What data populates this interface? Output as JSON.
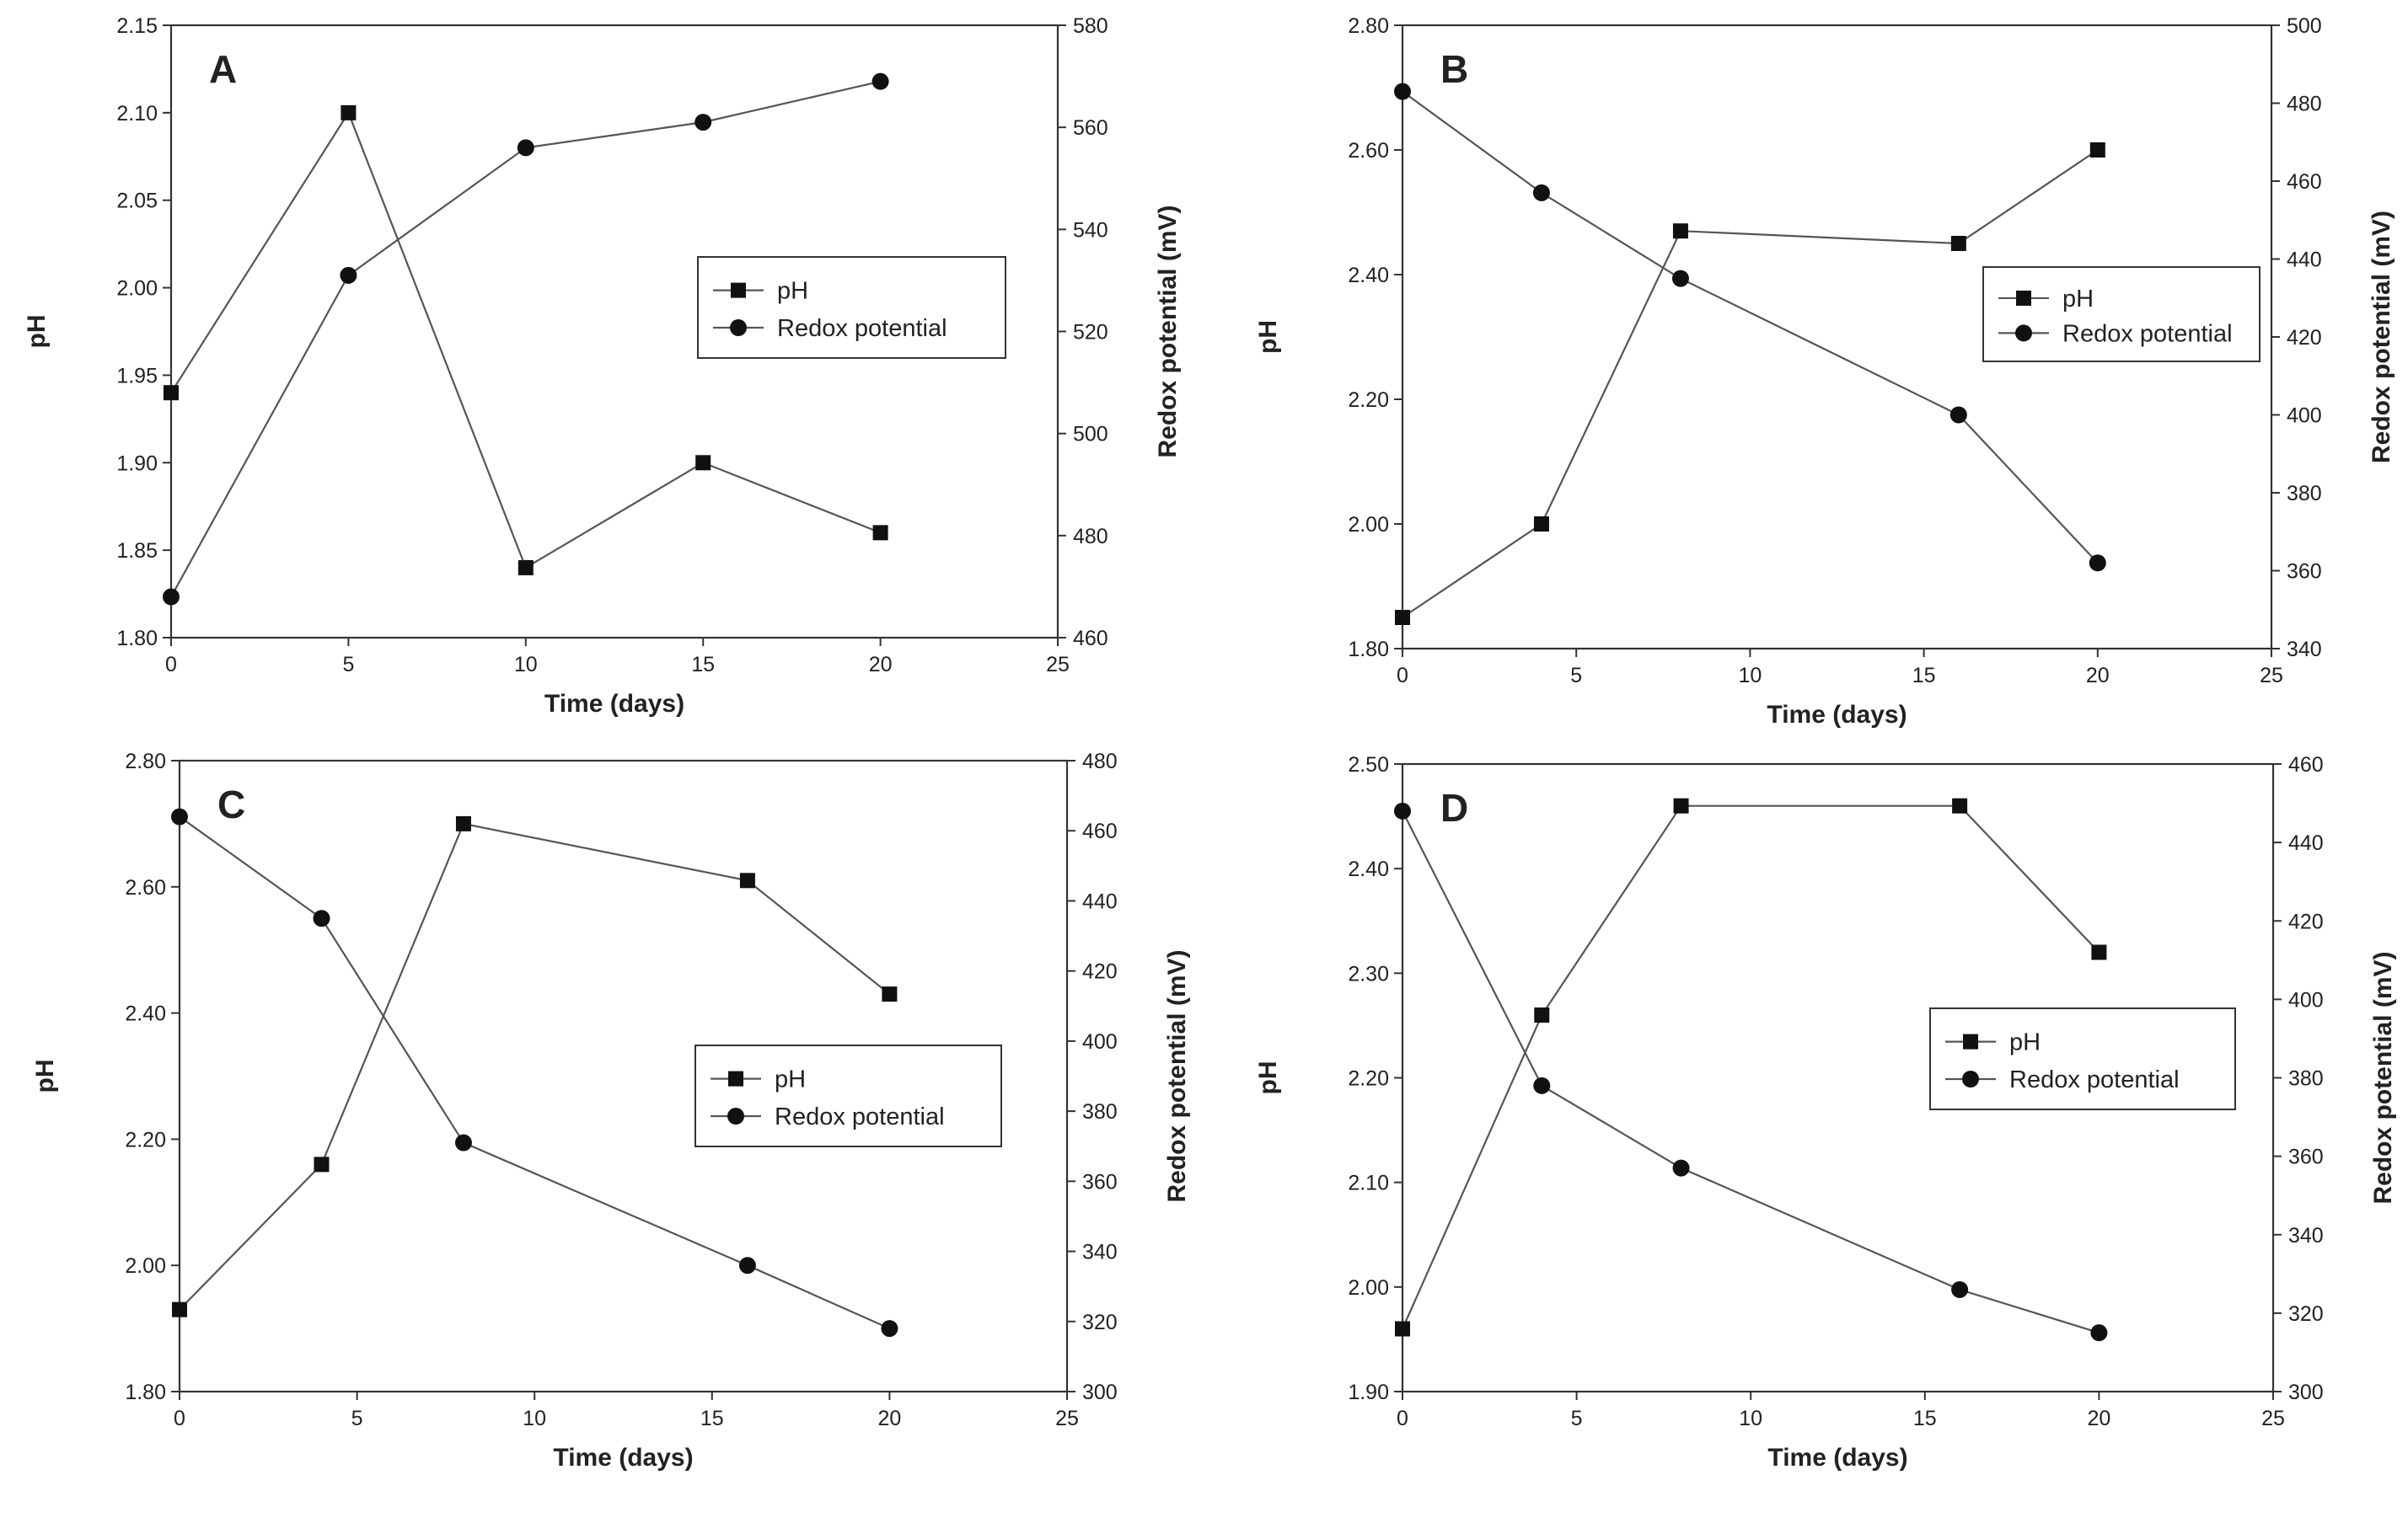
{
  "colors": {
    "line": "#555555",
    "marker": "#111111",
    "axis": "#333333",
    "background": "#ffffff"
  },
  "chart_data": [
    {
      "type": "line",
      "panel": "A",
      "xlabel": "Time (days)",
      "ylabel": "pH",
      "y2label": "Redox potential (mV)",
      "xlim": [
        0,
        25
      ],
      "xticks": [
        "0",
        "5",
        "10",
        "15",
        "20",
        "25"
      ],
      "ylim": [
        1.8,
        2.15
      ],
      "yticks": [
        "1.80",
        "1.85",
        "1.90",
        "1.95",
        "2.00",
        "2.05",
        "2.10",
        "2.15"
      ],
      "y2lim": [
        460,
        580
      ],
      "y2ticks": [
        "460",
        "480",
        "500",
        "520",
        "540",
        "560",
        "580"
      ],
      "legend": [
        "pH",
        "Redox potential"
      ],
      "legend_position": "center-right",
      "series": [
        {
          "name": "pH",
          "axis": "left",
          "marker": "square",
          "x": [
            0,
            5,
            10,
            15,
            20
          ],
          "values": [
            1.94,
            2.1,
            1.84,
            1.9,
            1.86
          ]
        },
        {
          "name": "Redox potential",
          "axis": "right",
          "marker": "circle",
          "x": [
            0,
            5,
            10,
            15,
            20
          ],
          "values": [
            468,
            531,
            556,
            561,
            569
          ]
        }
      ]
    },
    {
      "type": "line",
      "panel": "B",
      "xlabel": "Time (days)",
      "ylabel": "pH",
      "y2label": "Redox potential (mV)",
      "xlim": [
        0,
        25
      ],
      "xticks": [
        "0",
        "5",
        "10",
        "15",
        "20",
        "25"
      ],
      "ylim": [
        1.8,
        2.8
      ],
      "yticks": [
        "1.80",
        "2.00",
        "2.20",
        "2.40",
        "2.60",
        "2.80"
      ],
      "y2lim": [
        340,
        500
      ],
      "y2ticks": [
        "340",
        "360",
        "380",
        "400",
        "420",
        "440",
        "460",
        "480",
        "500"
      ],
      "legend": [
        "pH",
        "Redox potential"
      ],
      "legend_position": "center-right",
      "series": [
        {
          "name": "pH",
          "axis": "left",
          "marker": "square",
          "x": [
            0,
            4,
            8,
            16,
            20
          ],
          "values": [
            1.85,
            2.0,
            2.47,
            2.45,
            2.6
          ]
        },
        {
          "name": "Redox potential",
          "axis": "right",
          "marker": "circle",
          "x": [
            0,
            4,
            8,
            16,
            20
          ],
          "values": [
            483,
            457,
            435,
            400,
            362
          ]
        }
      ]
    },
    {
      "type": "line",
      "panel": "C",
      "xlabel": "Time (days)",
      "ylabel": "pH",
      "y2label": "Redox potential (mV)",
      "xlim": [
        0,
        25
      ],
      "xticks": [
        "0",
        "5",
        "10",
        "15",
        "20",
        "25"
      ],
      "ylim": [
        1.8,
        2.8
      ],
      "yticks": [
        "1.80",
        "2.00",
        "2.20",
        "2.40",
        "2.60",
        "2.80"
      ],
      "y2lim": [
        300,
        480
      ],
      "y2ticks": [
        "300",
        "320",
        "340",
        "360",
        "380",
        "400",
        "420",
        "440",
        "460",
        "480"
      ],
      "legend": [
        "pH",
        "Redox potential"
      ],
      "legend_position": "center-right",
      "series": [
        {
          "name": "pH",
          "axis": "left",
          "marker": "square",
          "x": [
            0,
            4,
            8,
            16,
            20
          ],
          "values": [
            1.93,
            2.16,
            2.7,
            2.61,
            2.43
          ]
        },
        {
          "name": "Redox potential",
          "axis": "right",
          "marker": "circle",
          "x": [
            0,
            4,
            8,
            16,
            20
          ],
          "values": [
            464,
            435,
            371,
            336,
            318
          ]
        }
      ]
    },
    {
      "type": "line",
      "panel": "D",
      "xlabel": "Time (days)",
      "ylabel": "pH",
      "y2label": "Redox potential (mV)",
      "xlim": [
        0,
        25
      ],
      "xticks": [
        "0",
        "5",
        "10",
        "15",
        "20",
        "25"
      ],
      "ylim": [
        1.9,
        2.5
      ],
      "yticks": [
        "1.90",
        "2.00",
        "2.10",
        "2.20",
        "2.30",
        "2.40",
        "2.50"
      ],
      "y2lim": [
        300,
        460
      ],
      "y2ticks": [
        "300",
        "320",
        "340",
        "360",
        "380",
        "400",
        "420",
        "440",
        "460"
      ],
      "legend": [
        "pH",
        "Redox potential"
      ],
      "legend_position": "center-right",
      "series": [
        {
          "name": "pH",
          "axis": "left",
          "marker": "square",
          "x": [
            0,
            4,
            8,
            16,
            20
          ],
          "values": [
            1.96,
            2.26,
            2.46,
            2.46,
            2.32
          ]
        },
        {
          "name": "Redox potential",
          "axis": "right",
          "marker": "circle",
          "x": [
            0,
            4,
            8,
            16,
            20
          ],
          "values": [
            448,
            378,
            357,
            326,
            315
          ]
        }
      ]
    }
  ]
}
